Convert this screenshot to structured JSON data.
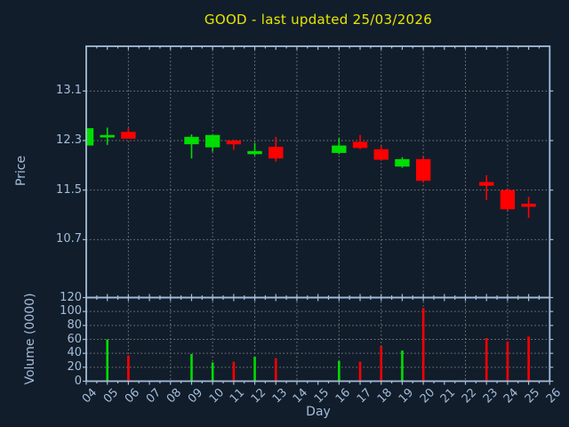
{
  "title": "GOOD - last updated 25/03/2026",
  "x_axis": {
    "label": "Day",
    "tick_labels": [
      "04",
      "05",
      "06",
      "07",
      "08",
      "09",
      "10",
      "11",
      "12",
      "13",
      "14",
      "15",
      "16",
      "17",
      "18",
      "19",
      "20",
      "21",
      "22",
      "23",
      "24",
      "25",
      "26"
    ]
  },
  "price_panel": {
    "ylabel": "Price",
    "tick_labels": [
      "13.1",
      "12.3",
      "11.5",
      "10.7"
    ]
  },
  "volume_panel": {
    "ylabel": "Volume (0000)",
    "tick_labels": [
      "120",
      "100",
      "80",
      "60",
      "40",
      "20",
      "0"
    ]
  },
  "colors": {
    "background": "#121d2b",
    "axis": "#a3bdda",
    "grid": "#7f7f7f",
    "up": "#00dd00",
    "down": "#ff0000",
    "title": "#e6e600"
  },
  "chart_data": {
    "type": "candlestick_with_volume",
    "title": "GOOD - last updated 25/03/2026",
    "xlabel": "Day",
    "price_ylabel": "Price",
    "volume_ylabel": "Volume (0000)",
    "x_day_range": [
      4,
      26
    ],
    "x_gridline_days": [
      4,
      6,
      8,
      10,
      12,
      14,
      16,
      18,
      20,
      22,
      24,
      26
    ],
    "price_ylim": [
      9.76,
      13.82
    ],
    "price_yticks": [
      13.1,
      12.3,
      11.5,
      10.7
    ],
    "volume_ylim": [
      0,
      120
    ],
    "volume_yticks": [
      120,
      100,
      80,
      60,
      40,
      20,
      0
    ],
    "grid": true,
    "legend": null,
    "sessions": [
      {
        "day": 4,
        "open": 12.22,
        "high": 12.5,
        "low": 12.22,
        "close": 12.5,
        "volume": 0
      },
      {
        "day": 5,
        "open": 12.35,
        "high": 12.51,
        "low": 12.23,
        "close": 12.39,
        "volume": 60
      },
      {
        "day": 6,
        "open": 12.44,
        "high": 12.5,
        "low": 12.33,
        "close": 12.33,
        "volume": 37
      },
      {
        "day": 9,
        "open": 12.24,
        "high": 12.4,
        "low": 12.01,
        "close": 12.36,
        "volume": 39
      },
      {
        "day": 10,
        "open": 12.19,
        "high": 12.39,
        "low": 12.12,
        "close": 12.39,
        "volume": 27
      },
      {
        "day": 11,
        "open": 12.3,
        "high": 12.31,
        "low": 12.15,
        "close": 12.24,
        "volume": 28
      },
      {
        "day": 12,
        "open": 12.08,
        "high": 12.26,
        "low": 12.06,
        "close": 12.13,
        "volume": 35
      },
      {
        "day": 13,
        "open": 12.2,
        "high": 12.36,
        "low": 11.96,
        "close": 12.01,
        "volume": 33
      },
      {
        "day": 16,
        "open": 12.1,
        "high": 12.34,
        "low": 12.08,
        "close": 12.22,
        "volume": 29
      },
      {
        "day": 17,
        "open": 12.28,
        "high": 12.39,
        "low": 12.16,
        "close": 12.18,
        "volume": 28
      },
      {
        "day": 18,
        "open": 12.16,
        "high": 12.21,
        "low": 11.98,
        "close": 11.99,
        "volume": 50
      },
      {
        "day": 19,
        "open": 11.88,
        "high": 12.03,
        "low": 11.86,
        "close": 12.0,
        "volume": 44
      },
      {
        "day": 20,
        "open": 12.0,
        "high": 12.04,
        "low": 11.62,
        "close": 11.65,
        "volume": 105
      },
      {
        "day": 23,
        "open": 11.63,
        "high": 11.74,
        "low": 11.34,
        "close": 11.57,
        "volume": 62
      },
      {
        "day": 24,
        "open": 11.5,
        "high": 11.53,
        "low": 11.17,
        "close": 11.19,
        "volume": 57
      },
      {
        "day": 25,
        "open": 11.28,
        "high": 11.39,
        "low": 11.05,
        "close": 11.23,
        "volume": 64
      }
    ]
  }
}
